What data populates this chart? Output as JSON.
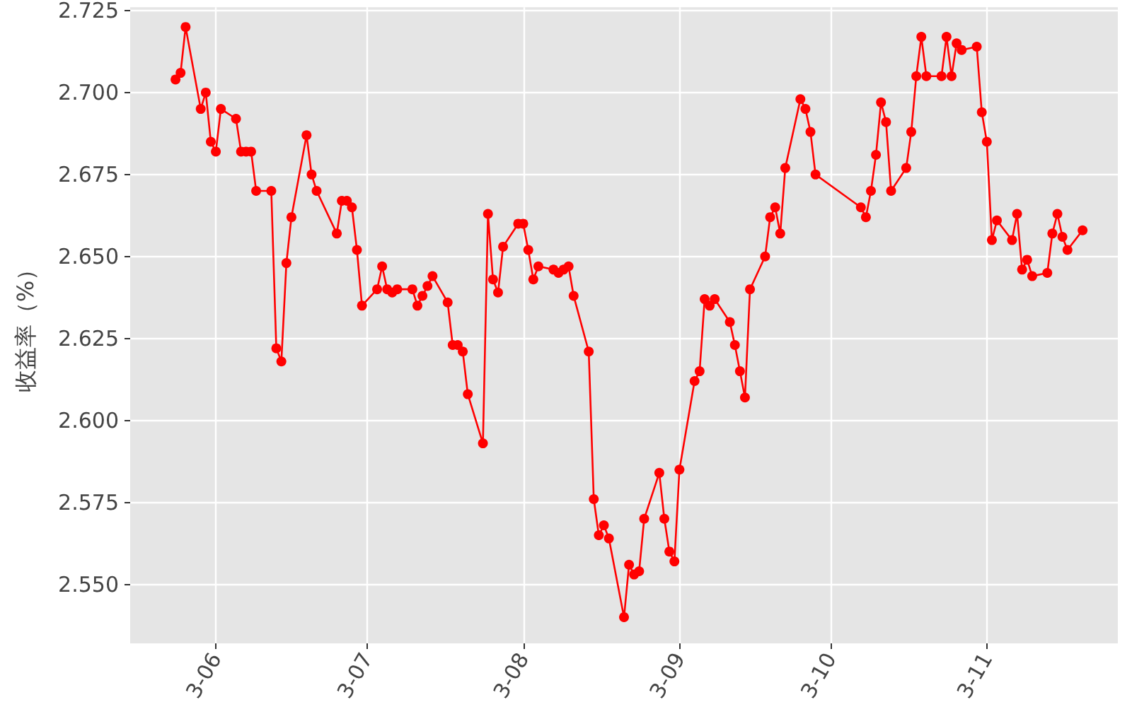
{
  "chart_data": {
    "type": "line",
    "ylabel": "收益率（%）",
    "x": [
      "--05-24",
      "--05-25",
      "--05-26",
      "--05-29",
      "--05-30",
      "--05-31",
      "--06-01",
      "--06-02",
      "--06-05",
      "--06-06",
      "--06-07",
      "--06-08",
      "--06-09",
      "--06-12",
      "--06-13",
      "--06-14",
      "--06-15",
      "--06-16",
      "--06-19",
      "--06-20",
      "--06-21",
      "--06-25",
      "--06-26",
      "--06-27",
      "--06-28",
      "--06-29",
      "--06-30",
      "--07-03",
      "--07-04",
      "--07-05",
      "--07-06",
      "--07-07",
      "--07-10",
      "--07-11",
      "--07-12",
      "--07-13",
      "--07-14",
      "--07-17",
      "--07-18",
      "--07-19",
      "--07-20",
      "--07-21",
      "--07-24",
      "--07-25",
      "--07-26",
      "--07-27",
      "--07-28",
      "--07-31",
      "--08-01",
      "--08-02",
      "--08-03",
      "--08-04",
      "--08-07",
      "--08-08",
      "--08-09",
      "--08-10",
      "--08-11",
      "--08-14",
      "--08-15",
      "--08-16",
      "--08-17",
      "--08-18",
      "--08-21",
      "--08-22",
      "--08-23",
      "--08-24",
      "--08-25",
      "--08-28",
      "--08-29",
      "--08-30",
      "--08-31",
      "--09-01",
      "--09-04",
      "--09-05",
      "--09-06",
      "--09-07",
      "--09-08",
      "--09-11",
      "--09-12",
      "--09-13",
      "--09-14",
      "--09-15",
      "--09-18",
      "--09-19",
      "--09-20",
      "--09-21",
      "--09-22",
      "--09-25",
      "--09-26",
      "--09-27",
      "--09-28",
      "--10-07",
      "--10-08",
      "--10-09",
      "--10-10",
      "--10-11",
      "--10-12",
      "--10-13",
      "--10-16",
      "--10-17",
      "--10-18",
      "--10-19",
      "--10-20",
      "--10-23",
      "--10-24",
      "--10-25",
      "--10-26",
      "--10-27",
      "--10-30",
      "--10-31",
      "--11-01",
      "--11-02",
      "--11-03",
      "--11-06",
      "--11-07",
      "--11-08",
      "--11-09",
      "--11-10",
      "--11-13",
      "--11-14",
      "--11-15",
      "--11-16",
      "--11-17",
      "--11-20"
    ],
    "series": [
      {
        "color": "#ff0000",
        "values": [
          2.704,
          2.706,
          2.72,
          2.695,
          2.7,
          2.685,
          2.682,
          2.695,
          2.692,
          2.682,
          2.682,
          2.682,
          2.67,
          2.67,
          2.622,
          2.618,
          2.648,
          2.662,
          2.687,
          2.675,
          2.67,
          2.657,
          2.667,
          2.667,
          2.665,
          2.652,
          2.635,
          2.64,
          2.647,
          2.64,
          2.639,
          2.64,
          2.64,
          2.635,
          2.638,
          2.641,
          2.644,
          2.636,
          2.623,
          2.623,
          2.621,
          2.608,
          2.593,
          2.663,
          2.643,
          2.639,
          2.653,
          2.66,
          2.66,
          2.652,
          2.643,
          2.647,
          2.646,
          2.645,
          2.646,
          2.647,
          2.638,
          2.621,
          2.576,
          2.565,
          2.568,
          2.564,
          2.54,
          2.556,
          2.553,
          2.554,
          2.57,
          2.584,
          2.57,
          2.56,
          2.557,
          2.585,
          2.612,
          2.615,
          2.637,
          2.635,
          2.637,
          2.63,
          2.623,
          2.615,
          2.607,
          2.64,
          2.65,
          2.662,
          2.665,
          2.657,
          2.677,
          2.698,
          2.695,
          2.688,
          2.675,
          2.665,
          2.662,
          2.67,
          2.681,
          2.697,
          2.691,
          2.67,
          2.677,
          2.688,
          2.705,
          2.717,
          2.705,
          2.705,
          2.717,
          2.705,
          2.715,
          2.713,
          2.714,
          2.694,
          2.685,
          2.655,
          2.661,
          2.655,
          2.663,
          2.646,
          2.649,
          2.644,
          2.645,
          2.657,
          2.663,
          2.656,
          2.652,
          2.658
        ]
      }
    ],
    "xlim": [
      "--05-15",
      "--11-27"
    ],
    "xticks": [
      {
        "value": "--06-01",
        "label": "3-06"
      },
      {
        "value": "--07-01",
        "label": "3-07"
      },
      {
        "value": "--08-01",
        "label": "3-08"
      },
      {
        "value": "--09-01",
        "label": "3-09"
      },
      {
        "value": "--10-01",
        "label": "3-10"
      },
      {
        "value": "--11-01",
        "label": "3-11"
      }
    ],
    "ylim": [
      2.532,
      2.726
    ],
    "yticks": [
      {
        "value": 2.55,
        "label": "2.550"
      },
      {
        "value": 2.575,
        "label": "2.575"
      },
      {
        "value": 2.6,
        "label": "2.600"
      },
      {
        "value": 2.625,
        "label": "2.625"
      },
      {
        "value": 2.65,
        "label": "2.650"
      },
      {
        "value": 2.675,
        "label": "2.675"
      },
      {
        "value": 2.7,
        "label": "2.700"
      },
      {
        "value": 2.725,
        "label": "2.725"
      }
    ],
    "grid": true,
    "marker": "circle",
    "line_style": "solid"
  }
}
